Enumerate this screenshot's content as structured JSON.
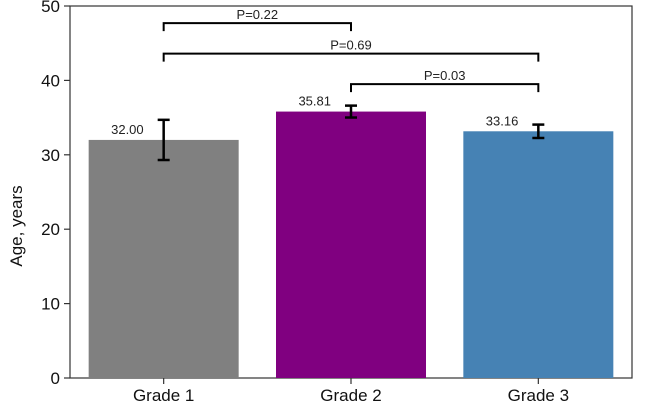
{
  "chart_data": {
    "type": "bar",
    "title": "",
    "xlabel": "",
    "ylabel": "Age, years",
    "categories": [
      "Grade 1",
      "Grade 2",
      "Grade 3"
    ],
    "values": [
      32.0,
      35.81,
      33.16
    ],
    "value_labels": [
      "32.00",
      "35.81",
      "33.16"
    ],
    "errors": [
      2.7,
      0.8,
      0.9
    ],
    "colors": [
      "#808080",
      "#800080",
      "#4682b4"
    ],
    "ylim": [
      0,
      50
    ],
    "yticks": [
      0,
      10,
      20,
      30,
      40,
      50
    ],
    "grid": false,
    "significance": [
      {
        "from": 0,
        "to": 1,
        "label": "P=0.22",
        "y": 47.7
      },
      {
        "from": 0,
        "to": 2,
        "label": "P=0.69",
        "y": 43.6
      },
      {
        "from": 1,
        "to": 2,
        "label": "P=0.03",
        "y": 39.5
      }
    ]
  }
}
